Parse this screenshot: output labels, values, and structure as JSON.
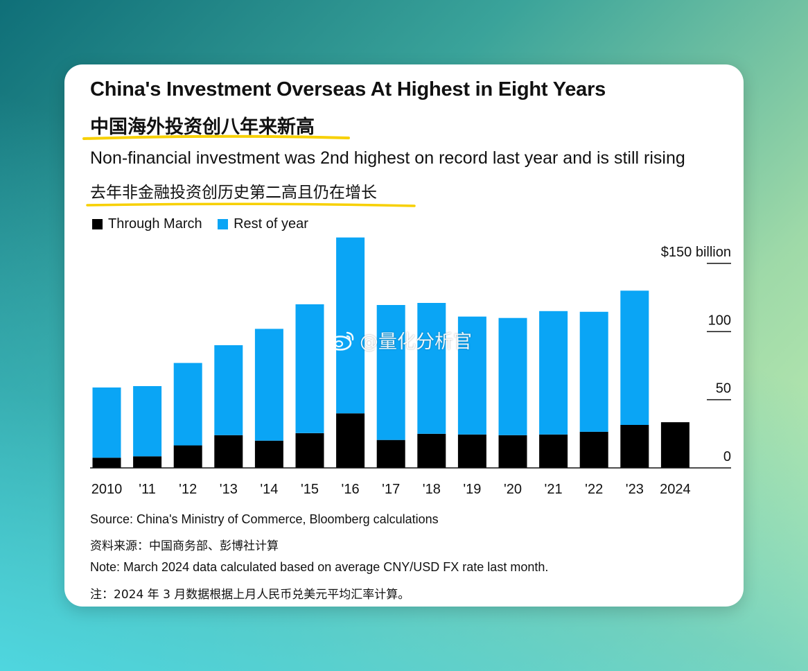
{
  "header": {
    "title": "China's Investment Overseas At Highest in Eight Years",
    "title_cn": "中国海外投资创八年来新高",
    "subtitle": "Non-financial investment was 2nd highest on record last year and is still rising",
    "subtitle_cn": "去年非金融投资创历史第二高且仍在增长"
  },
  "colors": {
    "through_march": "#000000",
    "rest_of_year": "#0aa5f5",
    "highlight": "#f7d000"
  },
  "watermark": {
    "icon": "weibo-icon",
    "text": "@量化分析官"
  },
  "footer": {
    "source": "Source: China's Ministry of Commerce, Bloomberg calculations",
    "source_cn": "资料来源：中国商务部、彭博社计算",
    "note": "Note: March 2024 data calculated based on average CNY/USD FX rate last month.",
    "note_cn": "注：2024 年 3 月数据根据上月人民币兑美元平均汇率计算。"
  },
  "chart_data": {
    "type": "bar",
    "stacked": true,
    "title": "China's Investment Overseas At Highest in Eight Years",
    "categories": [
      "2010",
      "'11",
      "'12",
      "'13",
      "'14",
      "'15",
      "'16",
      "'17",
      "'18",
      "'19",
      "'20",
      "'21",
      "'22",
      "'23",
      "2024"
    ],
    "series": [
      {
        "name": "Through March",
        "values": [
          7.5,
          8.5,
          16.5,
          24,
          20,
          25.5,
          40,
          20.5,
          25,
          24.5,
          24,
          24.5,
          26.5,
          31.5,
          33.5
        ]
      },
      {
        "name": "Rest of year",
        "values": [
          51.5,
          51.5,
          60.5,
          66,
          82,
          94.5,
          129,
          99,
          96,
          86.5,
          86,
          90.5,
          88,
          98.5,
          0
        ]
      }
    ],
    "y_ticks": [
      {
        "value": 0,
        "label": "0"
      },
      {
        "value": 50,
        "label": "50"
      },
      {
        "value": 100,
        "label": "100"
      },
      {
        "value": 150,
        "label": "$150 billion"
      }
    ],
    "ylim": [
      0,
      150
    ],
    "legend_position": "top-left",
    "xlabel": "",
    "ylabel": ""
  }
}
